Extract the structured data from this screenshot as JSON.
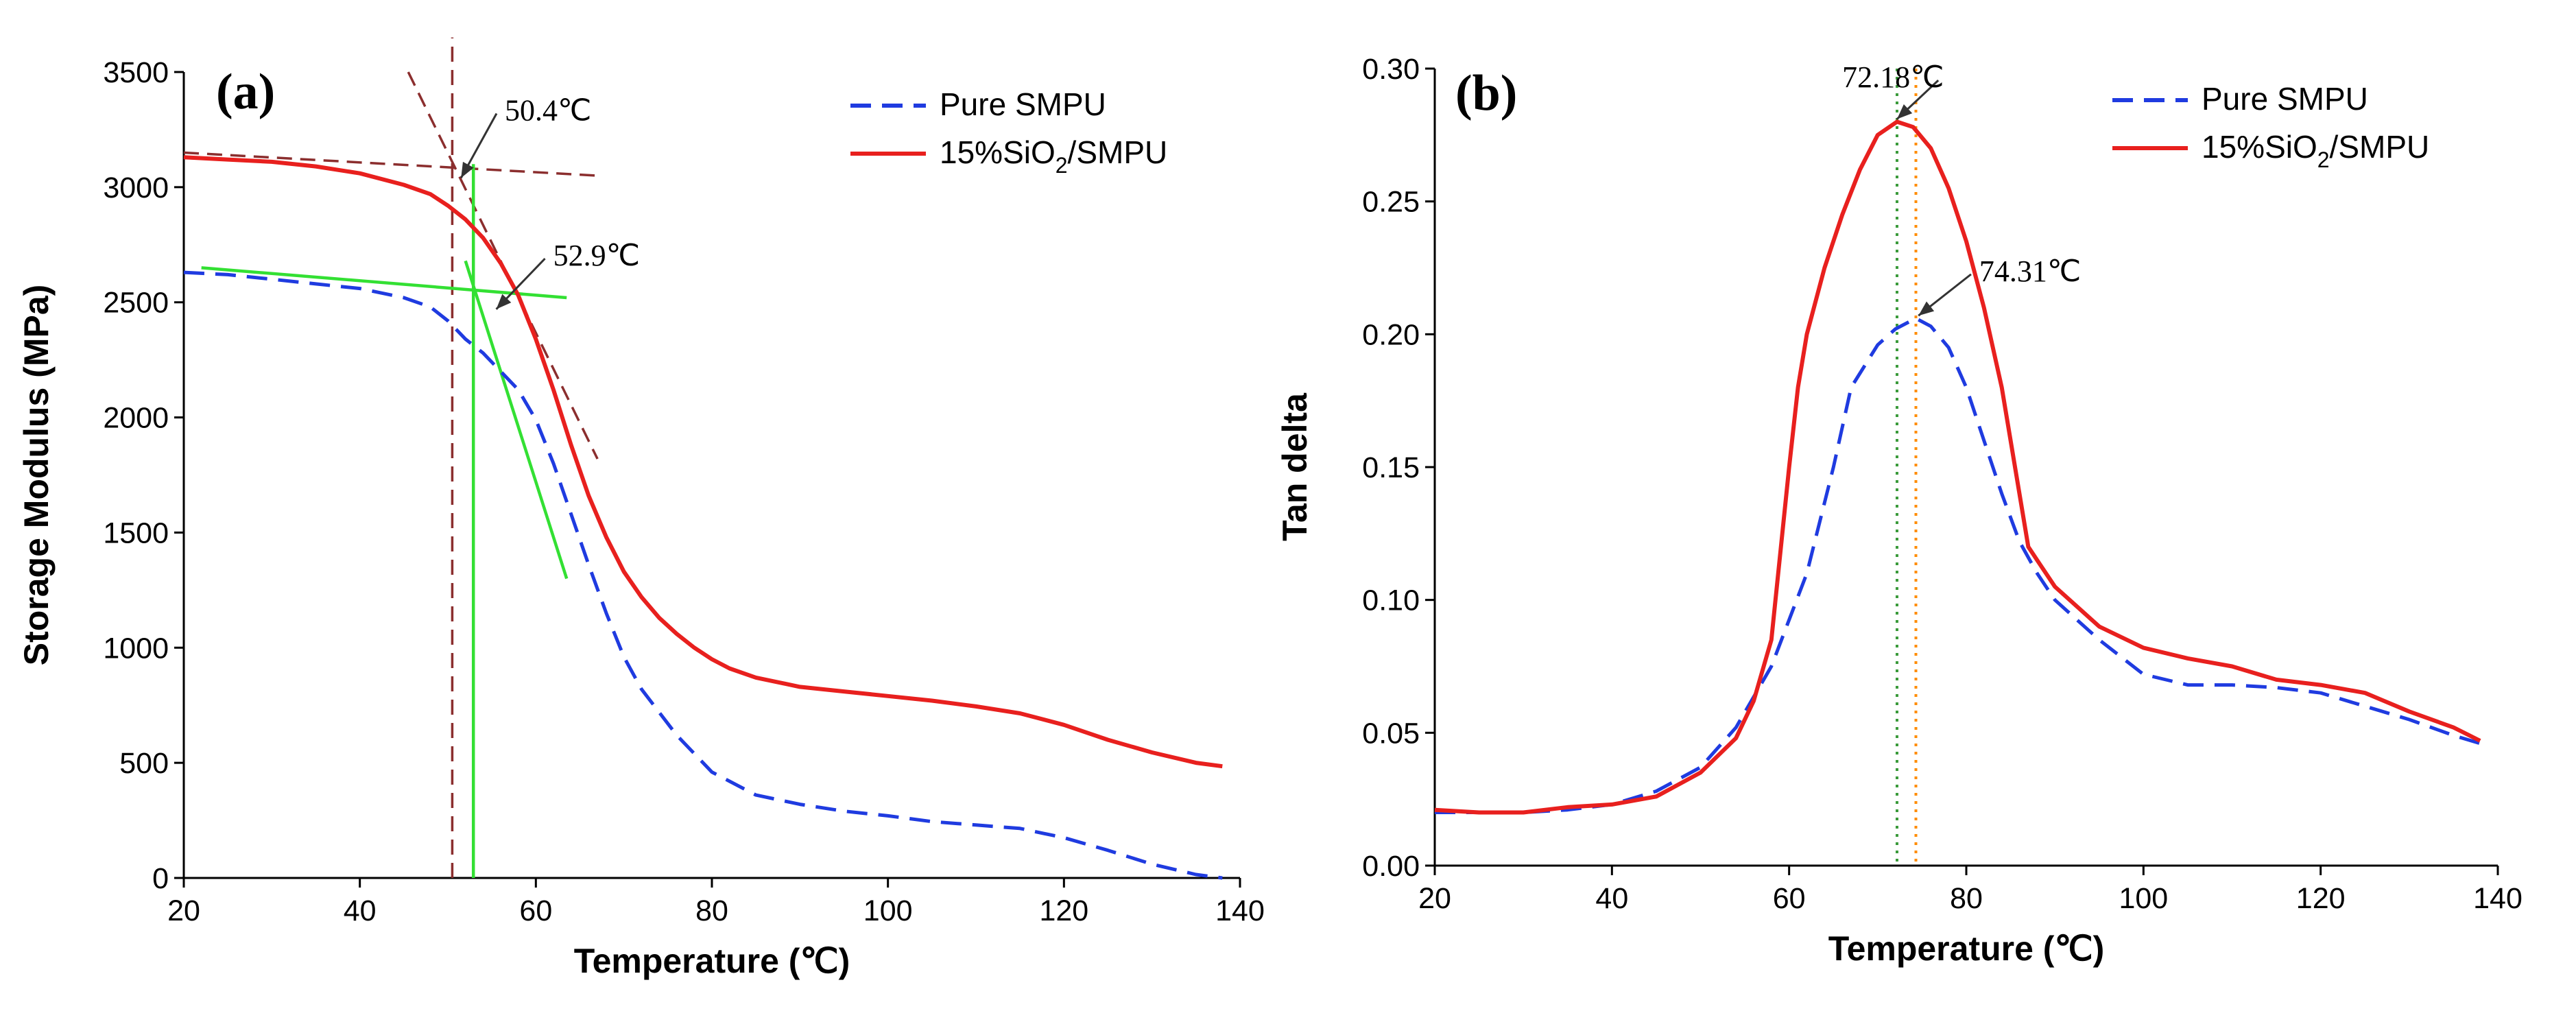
{
  "colors": {
    "pure": "#1f3be0",
    "composite": "#e8201e",
    "tangent_dark": "#8b2e2e",
    "tangent_green": "#33e033",
    "peak_green": "#3a9a3a",
    "peak_orange": "#ff8c00",
    "arrow": "#333333"
  },
  "chart_data": [
    {
      "id": "a",
      "type": "line",
      "panel_label": "(a)",
      "xlabel": "Temperature (℃)",
      "ylabel": "Storage Modulus (MPa)",
      "xlim": [
        20,
        140
      ],
      "ylim": [
        0,
        3500
      ],
      "x_ticks": [
        "20",
        "40",
        "60",
        "80",
        "100",
        "120",
        "140"
      ],
      "y_ticks": [
        "0",
        "500",
        "1000",
        "1500",
        "2000",
        "2500",
        "3000",
        "3500"
      ],
      "legend": [
        "Pure SMPU",
        "15%SiO2/SMPU"
      ],
      "legend_composite_parts": [
        "15%SiO",
        "2",
        "/SMPU"
      ],
      "series": [
        {
          "name": "Pure SMPU",
          "style": "dashed",
          "color_key": "pure",
          "x": [
            20,
            25,
            30,
            35,
            40,
            45,
            48,
            50,
            52,
            54,
            56,
            58,
            60,
            62,
            64,
            66,
            68,
            70,
            72,
            74,
            76,
            78,
            80,
            82,
            85,
            90,
            95,
            100,
            105,
            110,
            115,
            120,
            125,
            130,
            135,
            138
          ],
          "y": [
            2630,
            2620,
            2600,
            2580,
            2560,
            2520,
            2480,
            2420,
            2340,
            2280,
            2200,
            2120,
            1990,
            1800,
            1580,
            1360,
            1150,
            960,
            820,
            720,
            620,
            540,
            460,
            420,
            360,
            320,
            290,
            270,
            245,
            230,
            215,
            175,
            120,
            60,
            15,
            0
          ]
        },
        {
          "name": "15%SiO2/SMPU",
          "style": "solid",
          "color_key": "composite",
          "x": [
            20,
            25,
            30,
            35,
            40,
            45,
            48,
            50,
            52,
            54,
            56,
            58,
            60,
            62,
            64,
            66,
            68,
            70,
            72,
            74,
            76,
            78,
            80,
            82,
            85,
            90,
            95,
            100,
            105,
            110,
            115,
            120,
            125,
            130,
            135,
            138
          ],
          "y": [
            3130,
            3120,
            3110,
            3090,
            3060,
            3010,
            2970,
            2920,
            2860,
            2780,
            2670,
            2530,
            2340,
            2120,
            1880,
            1660,
            1480,
            1330,
            1220,
            1130,
            1060,
            1000,
            950,
            910,
            870,
            830,
            810,
            790,
            770,
            745,
            715,
            665,
            600,
            545,
            500,
            485
          ]
        }
      ],
      "tangent_lines": [
        {
          "color_key": "tangent_dark",
          "dash": true,
          "from": [
            20,
            3150
          ],
          "to": [
            67,
            3050
          ]
        },
        {
          "color_key": "tangent_dark",
          "dash": true,
          "from": [
            45.5,
            3500
          ],
          "to": [
            67,
            1820
          ]
        },
        {
          "color_key": "tangent_dark",
          "dash": true,
          "from": [
            50.5,
            0
          ],
          "to": [
            50.5,
            3650
          ]
        },
        {
          "color_key": "tangent_green",
          "dash": false,
          "from": [
            22,
            2650
          ],
          "to": [
            63.5,
            2520
          ]
        },
        {
          "color_key": "tangent_green",
          "dash": false,
          "from": [
            52,
            2680
          ],
          "to": [
            63.5,
            1300
          ]
        },
        {
          "color_key": "tangent_green",
          "dash": false,
          "from": [
            52.9,
            0
          ],
          "to": [
            52.9,
            3100
          ]
        }
      ],
      "annotations": [
        {
          "text": "50.4℃",
          "target": [
            51.5,
            3040
          ],
          "label_at": [
            56,
            3290
          ]
        },
        {
          "text": "52.9℃",
          "target": [
            55.5,
            2470
          ],
          "label_at": [
            61.5,
            2660
          ]
        }
      ]
    },
    {
      "id": "b",
      "type": "line",
      "panel_label": "(b)",
      "xlabel": "Temperature (℃)",
      "ylabel": "Tan delta",
      "xlim": [
        20,
        140
      ],
      "ylim": [
        0,
        0.3
      ],
      "x_ticks": [
        "20",
        "40",
        "60",
        "80",
        "100",
        "120",
        "140"
      ],
      "y_ticks": [
        "0.00",
        "0.05",
        "0.10",
        "0.15",
        "0.20",
        "0.25",
        "0.30"
      ],
      "legend": [
        "Pure SMPU",
        "15%SiO2/SMPU"
      ],
      "legend_composite_parts": [
        "15%SiO",
        "2",
        "/SMPU"
      ],
      "series": [
        {
          "name": "Pure SMPU",
          "style": "dashed",
          "color_key": "pure",
          "x": [
            20,
            25,
            30,
            35,
            40,
            45,
            50,
            54,
            58,
            62,
            65,
            67,
            70,
            72,
            74.31,
            76,
            78,
            80,
            82,
            84,
            86,
            88,
            90,
            95,
            100,
            105,
            110,
            115,
            120,
            125,
            130,
            135,
            138
          ],
          "y": [
            0.02,
            0.02,
            0.02,
            0.021,
            0.023,
            0.028,
            0.037,
            0.052,
            0.075,
            0.11,
            0.15,
            0.18,
            0.196,
            0.202,
            0.206,
            0.203,
            0.195,
            0.18,
            0.16,
            0.14,
            0.122,
            0.11,
            0.1,
            0.085,
            0.072,
            0.068,
            0.068,
            0.067,
            0.065,
            0.06,
            0.055,
            0.049,
            0.046
          ]
        },
        {
          "name": "15%SiO2/SMPU",
          "style": "solid",
          "color_key": "composite",
          "x": [
            20,
            25,
            30,
            35,
            40,
            45,
            50,
            54,
            56,
            58,
            60,
            61,
            62,
            64,
            66,
            68,
            70,
            72.18,
            74,
            76,
            78,
            80,
            82,
            84,
            86,
            87,
            88,
            90,
            95,
            100,
            105,
            110,
            115,
            120,
            125,
            130,
            135,
            138
          ],
          "y": [
            0.021,
            0.02,
            0.02,
            0.022,
            0.023,
            0.026,
            0.035,
            0.048,
            0.062,
            0.085,
            0.15,
            0.18,
            0.2,
            0.225,
            0.245,
            0.262,
            0.275,
            0.28,
            0.278,
            0.27,
            0.255,
            0.235,
            0.21,
            0.18,
            0.14,
            0.12,
            0.115,
            0.105,
            0.09,
            0.082,
            0.078,
            0.075,
            0.07,
            0.068,
            0.065,
            0.058,
            0.052,
            0.047
          ]
        }
      ],
      "peak_lines": [
        {
          "x": 72.18,
          "color_key": "peak_green"
        },
        {
          "x": 74.31,
          "color_key": "peak_orange"
        }
      ],
      "annotations": [
        {
          "text": "72.18℃",
          "target": [
            72.18,
            0.281
          ],
          "label_at": [
            66,
            0.293
          ]
        },
        {
          "text": "74.31℃",
          "target": [
            74.6,
            0.207
          ],
          "label_at": [
            81,
            0.22
          ]
        }
      ]
    }
  ]
}
